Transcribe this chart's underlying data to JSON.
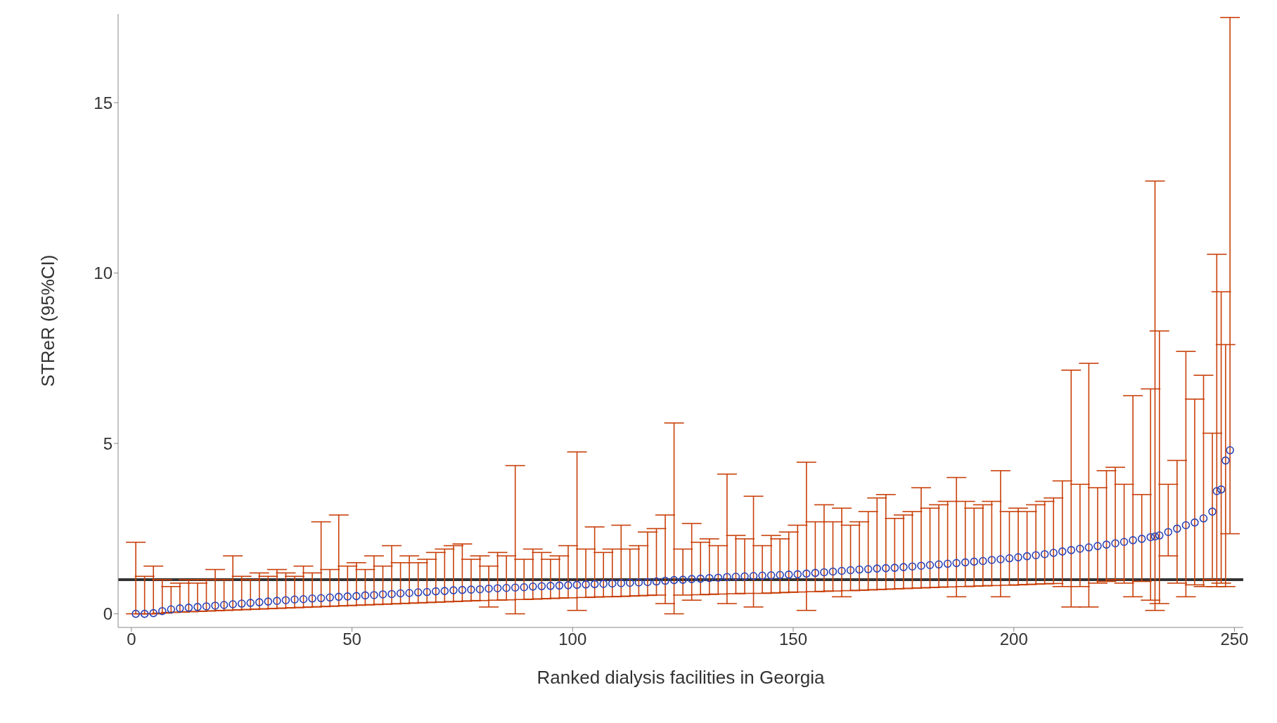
{
  "chart_data": {
    "type": "scatter",
    "xlabel": "Ranked dialysis facilities in Georgia",
    "ylabel": "STReR (95%CI)",
    "xlim": [
      -3,
      252
    ],
    "xticks": [
      0,
      50,
      100,
      150,
      200,
      250
    ],
    "ylim": [
      -0.4,
      17.6
    ],
    "yticks": [
      0,
      5,
      10,
      15
    ],
    "grid": false,
    "marker": "circle",
    "x": [
      1,
      3,
      5,
      7,
      9,
      11,
      13,
      15,
      17,
      19,
      21,
      23,
      25,
      27,
      29,
      31,
      33,
      35,
      37,
      39,
      41,
      43,
      45,
      47,
      49,
      51,
      53,
      55,
      57,
      59,
      61,
      63,
      65,
      67,
      69,
      71,
      73,
      75,
      77,
      79,
      81,
      83,
      85,
      87,
      89,
      91,
      93,
      95,
      97,
      99,
      101,
      103,
      105,
      107,
      109,
      111,
      113,
      115,
      117,
      119,
      121,
      123,
      125,
      127,
      129,
      131,
      133,
      135,
      137,
      139,
      141,
      143,
      145,
      147,
      149,
      151,
      153,
      155,
      157,
      159,
      161,
      163,
      165,
      167,
      169,
      171,
      173,
      175,
      177,
      179,
      181,
      183,
      185,
      187,
      189,
      191,
      193,
      195,
      197,
      199,
      201,
      203,
      205,
      207,
      209,
      211,
      213,
      215,
      217,
      219,
      221,
      223,
      225,
      227,
      229,
      231,
      232,
      233,
      235,
      237,
      239,
      241,
      243,
      245,
      246,
      247,
      248,
      249
    ],
    "series": [
      {
        "color": "#2a44b8",
        "values": [
          0,
          0,
          0.02,
          0.08,
          0.13,
          0.16,
          0.18,
          0.2,
          0.22,
          0.24,
          0.26,
          0.28,
          0.3,
          0.32,
          0.34,
          0.36,
          0.38,
          0.4,
          0.42,
          0.43,
          0.45,
          0.46,
          0.48,
          0.5,
          0.51,
          0.52,
          0.54,
          0.55,
          0.57,
          0.58,
          0.6,
          0.61,
          0.63,
          0.64,
          0.66,
          0.67,
          0.69,
          0.7,
          0.71,
          0.72,
          0.74,
          0.75,
          0.76,
          0.77,
          0.78,
          0.8,
          0.81,
          0.82,
          0.83,
          0.84,
          0.85,
          0.86,
          0.87,
          0.88,
          0.89,
          0.9,
          0.91,
          0.92,
          0.93,
          0.95,
          0.97,
          0.99,
          1.0,
          1.02,
          1.03,
          1.05,
          1.06,
          1.08,
          1.09,
          1.1,
          1.11,
          1.12,
          1.13,
          1.14,
          1.15,
          1.16,
          1.18,
          1.2,
          1.22,
          1.24,
          1.26,
          1.28,
          1.3,
          1.31,
          1.33,
          1.34,
          1.35,
          1.37,
          1.39,
          1.41,
          1.43,
          1.45,
          1.47,
          1.49,
          1.51,
          1.53,
          1.55,
          1.58,
          1.6,
          1.63,
          1.66,
          1.69,
          1.72,
          1.75,
          1.79,
          1.83,
          1.87,
          1.91,
          1.95,
          1.99,
          2.03,
          2.07,
          2.11,
          2.16,
          2.2,
          2.25,
          2.27,
          2.3,
          2.4,
          2.5,
          2.6,
          2.68,
          2.8,
          3.0,
          3.6,
          3.65,
          4.5,
          4.8
        ],
        "errors": [
          [
            0,
            2.1
          ],
          [
            0,
            1.1
          ],
          [
            0,
            1.4
          ],
          [
            0.02,
            1.0
          ],
          [
            0.04,
            0.8
          ],
          [
            0.05,
            0.9
          ],
          [
            0.06,
            1.0
          ],
          [
            0.07,
            0.9
          ],
          [
            0.08,
            1.0
          ],
          [
            0.09,
            1.3
          ],
          [
            0.1,
            1.0
          ],
          [
            0.11,
            1.7
          ],
          [
            0.12,
            1.1
          ],
          [
            0.13,
            1.0
          ],
          [
            0.14,
            1.2
          ],
          [
            0.15,
            1.1
          ],
          [
            0.16,
            1.3
          ],
          [
            0.17,
            1.2
          ],
          [
            0.18,
            1.1
          ],
          [
            0.19,
            1.4
          ],
          [
            0.2,
            1.2
          ],
          [
            0.21,
            2.7
          ],
          [
            0.22,
            1.3
          ],
          [
            0.23,
            2.9
          ],
          [
            0.24,
            1.4
          ],
          [
            0.25,
            1.5
          ],
          [
            0.26,
            1.3
          ],
          [
            0.27,
            1.7
          ],
          [
            0.28,
            1.4
          ],
          [
            0.29,
            2.0
          ],
          [
            0.3,
            1.5
          ],
          [
            0.31,
            1.7
          ],
          [
            0.32,
            1.5
          ],
          [
            0.33,
            1.6
          ],
          [
            0.34,
            1.8
          ],
          [
            0.35,
            1.9
          ],
          [
            0.36,
            2.0
          ],
          [
            0.37,
            2.05
          ],
          [
            0.38,
            1.6
          ],
          [
            0.39,
            1.7
          ],
          [
            0.2,
            1.4
          ],
          [
            0.4,
            1.8
          ],
          [
            0.41,
            1.7
          ],
          [
            0.0,
            4.35
          ],
          [
            0.42,
            1.6
          ],
          [
            0.43,
            1.9
          ],
          [
            0.44,
            1.8
          ],
          [
            0.45,
            1.6
          ],
          [
            0.46,
            1.7
          ],
          [
            0.47,
            2.0
          ],
          [
            0.1,
            4.75
          ],
          [
            0.48,
            1.9
          ],
          [
            0.49,
            2.55
          ],
          [
            0.5,
            1.8
          ],
          [
            0.5,
            1.9
          ],
          [
            0.51,
            2.6
          ],
          [
            0.52,
            1.9
          ],
          [
            0.53,
            2.0
          ],
          [
            0.54,
            2.4
          ],
          [
            0.55,
            2.5
          ],
          [
            0.3,
            2.9
          ],
          [
            0.0,
            5.6
          ],
          [
            0.55,
            1.9
          ],
          [
            0.4,
            2.65
          ],
          [
            0.56,
            2.1
          ],
          [
            0.57,
            2.2
          ],
          [
            0.58,
            2.0
          ],
          [
            0.3,
            4.1
          ],
          [
            0.59,
            2.3
          ],
          [
            0.6,
            2.2
          ],
          [
            0.2,
            3.45
          ],
          [
            0.6,
            2.0
          ],
          [
            0.61,
            2.3
          ],
          [
            0.62,
            2.2
          ],
          [
            0.63,
            2.4
          ],
          [
            0.64,
            2.6
          ],
          [
            0.1,
            4.45
          ],
          [
            0.65,
            2.7
          ],
          [
            0.66,
            3.2
          ],
          [
            0.67,
            2.7
          ],
          [
            0.5,
            3.1
          ],
          [
            0.68,
            2.6
          ],
          [
            0.69,
            2.7
          ],
          [
            0.7,
            3.0
          ],
          [
            0.71,
            3.4
          ],
          [
            0.72,
            3.5
          ],
          [
            0.73,
            2.8
          ],
          [
            0.74,
            2.9
          ],
          [
            0.75,
            3.0
          ],
          [
            0.76,
            3.7
          ],
          [
            0.77,
            3.1
          ],
          [
            0.78,
            3.2
          ],
          [
            0.79,
            3.3
          ],
          [
            0.5,
            4.0
          ],
          [
            0.8,
            3.3
          ],
          [
            0.81,
            3.1
          ],
          [
            0.82,
            3.2
          ],
          [
            0.83,
            3.3
          ],
          [
            0.5,
            4.2
          ],
          [
            0.84,
            3.0
          ],
          [
            0.85,
            3.1
          ],
          [
            0.86,
            3.0
          ],
          [
            0.87,
            3.2
          ],
          [
            0.88,
            3.3
          ],
          [
            0.89,
            3.4
          ],
          [
            0.8,
            3.9
          ],
          [
            0.2,
            7.15
          ],
          [
            0.8,
            3.8
          ],
          [
            0.2,
            7.35
          ],
          [
            0.9,
            3.7
          ],
          [
            0.95,
            4.2
          ],
          [
            1.0,
            4.3
          ],
          [
            0.9,
            3.8
          ],
          [
            0.5,
            6.4
          ],
          [
            0.95,
            3.5
          ],
          [
            0.4,
            6.6
          ],
          [
            0.1,
            12.7
          ],
          [
            0.3,
            8.3
          ],
          [
            1.7,
            3.8
          ],
          [
            0.9,
            4.5
          ],
          [
            0.5,
            7.7
          ],
          [
            0.85,
            6.3
          ],
          [
            0.8,
            7.0
          ],
          [
            1.0,
            5.3
          ],
          [
            0.8,
            10.55
          ],
          [
            0.9,
            9.45
          ],
          [
            0.8,
            7.9
          ],
          [
            2.35,
            17.5
          ]
        ]
      }
    ],
    "ref_lines": [
      {
        "axis": "y",
        "value": 1,
        "color": "#333333"
      }
    ]
  }
}
